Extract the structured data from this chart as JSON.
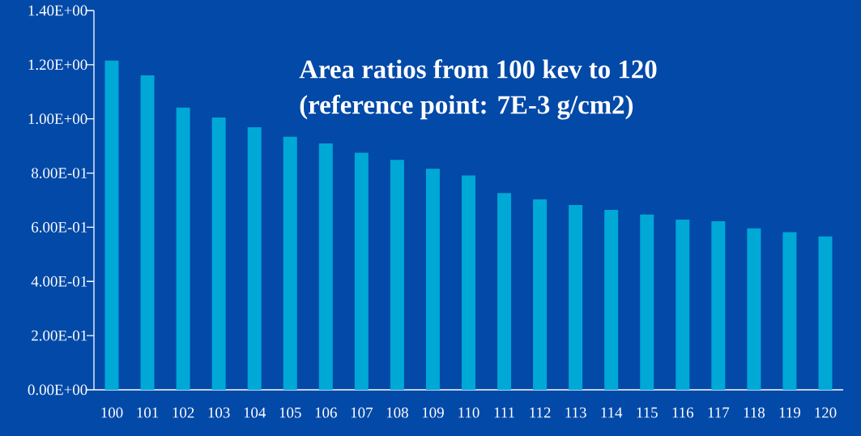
{
  "chart_data": {
    "type": "bar",
    "title": "Area ratios from 100 kev to 120\n(reference point: 7E-3 g/cm2)",
    "categories": [
      "100",
      "101",
      "102",
      "103",
      "104",
      "105",
      "106",
      "107",
      "108",
      "109",
      "110",
      "111",
      "112",
      "113",
      "114",
      "115",
      "116",
      "117",
      "118",
      "119",
      "120"
    ],
    "values": [
      1.215,
      1.161,
      1.042,
      1.005,
      0.969,
      0.934,
      0.909,
      0.875,
      0.849,
      0.816,
      0.791,
      0.726,
      0.703,
      0.682,
      0.664,
      0.647,
      0.628,
      0.622,
      0.596,
      0.582,
      0.566
    ],
    "color": "#00a8d6",
    "ylim": [
      0,
      1.4
    ],
    "yticks": [
      {
        "value": 0,
        "label": "0.00E+00"
      },
      {
        "value": 0.2,
        "label": "2.00E-01"
      },
      {
        "value": 0.4,
        "label": "4.00E-01"
      },
      {
        "value": 0.6,
        "label": "6.00E-01"
      },
      {
        "value": 0.8,
        "label": "8.00E-01"
      },
      {
        "value": 1.0,
        "label": "1.00E+00"
      },
      {
        "value": 1.2,
        "label": "1.20E+00"
      },
      {
        "value": 1.4,
        "label": "1.40E+00"
      }
    ],
    "grid": false
  }
}
